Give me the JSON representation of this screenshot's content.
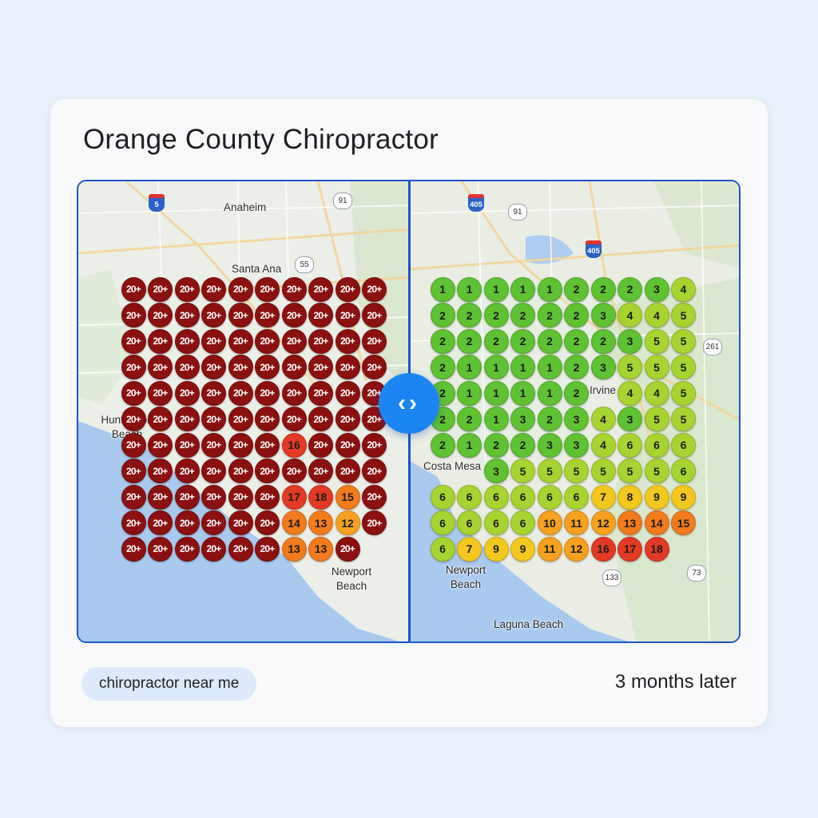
{
  "title": "Orange County Chiropractor",
  "keyword": "chiropractor near me",
  "after_label": "3 months later",
  "compare_icon": "code-brackets-icon",
  "colors": {
    "accent": "#1a56c8",
    "button": "#1b86f2",
    "rank_dark_red": "#8b1111",
    "rank_green": "#5fc232",
    "rank_yellow": "#f2c81e",
    "rank_orange": "#f27b1d",
    "rank_red": "#e23a24"
  },
  "before": {
    "places": [
      "Anaheim",
      "Santa Ana",
      "Huntington Beach",
      "Newport Beach"
    ],
    "shields": [
      "5",
      "91",
      "55"
    ],
    "grid": [
      [
        "20+",
        "20+",
        "20+",
        "20+",
        "20+",
        "20+",
        "20+",
        "20+",
        "20+",
        "20+"
      ],
      [
        "20+",
        "20+",
        "20+",
        "20+",
        "20+",
        "20+",
        "20+",
        "20+",
        "20+",
        "20+"
      ],
      [
        "20+",
        "20+",
        "20+",
        "20+",
        "20+",
        "20+",
        "20+",
        "20+",
        "20+",
        "20+"
      ],
      [
        "20+",
        "20+",
        "20+",
        "20+",
        "20+",
        "20+",
        "20+",
        "20+",
        "20+",
        "20+"
      ],
      [
        "20+",
        "20+",
        "20+",
        "20+",
        "20+",
        "20+",
        "20+",
        "20+",
        "20+",
        "20+"
      ],
      [
        "20+",
        "20+",
        "20+",
        "20+",
        "20+",
        "20+",
        "20+",
        "20+",
        "20+",
        "20+"
      ],
      [
        "20+",
        "20+",
        "20+",
        "20+",
        "20+",
        "20+",
        "16",
        "20+",
        "20+",
        "20+"
      ],
      [
        "20+",
        "20+",
        "20+",
        "20+",
        "20+",
        "20+",
        "20+",
        "20+",
        "20+",
        "20+"
      ],
      [
        "20+",
        "20+",
        "20+",
        "20+",
        "20+",
        "20+",
        "17",
        "18",
        "15",
        "20+"
      ],
      [
        "20+",
        "20+",
        "20+",
        "20+",
        "20+",
        "20+",
        "14",
        "13",
        "12",
        "20+"
      ],
      [
        "20+",
        "20+",
        "20+",
        "20+",
        "20+",
        "20+",
        "13",
        "13",
        "20+",
        ""
      ]
    ]
  },
  "after": {
    "places": [
      "Irvine",
      "Costa Mesa",
      "Newport Beach",
      "Laguna Beach"
    ],
    "shields": [
      "405",
      "91",
      "405",
      "261",
      "133",
      "73"
    ],
    "grid": [
      [
        "1",
        "1",
        "1",
        "1",
        "1",
        "2",
        "2",
        "2",
        "3",
        "4"
      ],
      [
        "2",
        "2",
        "2",
        "2",
        "2",
        "2",
        "3",
        "4",
        "4",
        "5"
      ],
      [
        "2",
        "2",
        "2",
        "2",
        "2",
        "2",
        "2",
        "3",
        "5",
        "5"
      ],
      [
        "2",
        "1",
        "1",
        "1",
        "1",
        "2",
        "3",
        "5",
        "5",
        "5"
      ],
      [
        "2",
        "1",
        "1",
        "1",
        "1",
        "2",
        "",
        "4",
        "4",
        "5"
      ],
      [
        "2",
        "2",
        "1",
        "3",
        "2",
        "3",
        "4",
        "3",
        "5",
        "5"
      ],
      [
        "2",
        "1",
        "2",
        "2",
        "3",
        "3",
        "4",
        "6",
        "6",
        "6"
      ],
      [
        "",
        "",
        "3",
        "5",
        "5",
        "5",
        "5",
        "5",
        "5",
        "6"
      ],
      [
        "6",
        "6",
        "6",
        "6",
        "6",
        "6",
        "7",
        "8",
        "9",
        "9"
      ],
      [
        "6",
        "6",
        "6",
        "6",
        "10",
        "11",
        "12",
        "13",
        "14",
        "15"
      ],
      [
        "6",
        "7",
        "9",
        "9",
        "11",
        "12",
        "16",
        "17",
        "18",
        ""
      ]
    ]
  }
}
